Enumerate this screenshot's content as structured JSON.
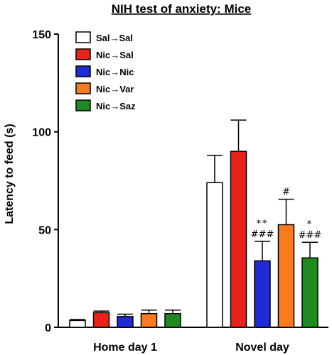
{
  "chart_data": {
    "type": "bar",
    "title": "NIH test of anxiety: Mice",
    "ylabel": "Latency to feed (s)",
    "xlabel": "",
    "ylim": [
      0,
      150
    ],
    "yticks": [
      0,
      50,
      100,
      150
    ],
    "categories": [
      "Home day 1",
      "Novel day"
    ],
    "legend_position": "top-left",
    "series": [
      {
        "name": "Sal→Sal",
        "color": "#ffffff",
        "values": [
          3.5,
          74
        ],
        "errors": [
          0.5,
          14
        ],
        "annotations": [
          "",
          ""
        ]
      },
      {
        "name": "Nic→Sal",
        "color": "#e8231c",
        "values": [
          7.5,
          90
        ],
        "errors": [
          0.8,
          16
        ],
        "annotations": [
          "",
          ""
        ]
      },
      {
        "name": "Nic→Nic",
        "color": "#1f2bd6",
        "values": [
          5.5,
          34
        ],
        "errors": [
          1.2,
          10
        ],
        "annotations": [
          "",
          "**\n###"
        ]
      },
      {
        "name": "Nic→Var",
        "color": "#f97a1f",
        "values": [
          7,
          52.5
        ],
        "errors": [
          1.8,
          13
        ],
        "annotations": [
          "",
          "#"
        ]
      },
      {
        "name": "Nic→Saz",
        "color": "#1f8a1f",
        "values": [
          7,
          35.5
        ],
        "errors": [
          1.8,
          8
        ],
        "annotations": [
          "",
          "*\n###"
        ]
      }
    ]
  }
}
